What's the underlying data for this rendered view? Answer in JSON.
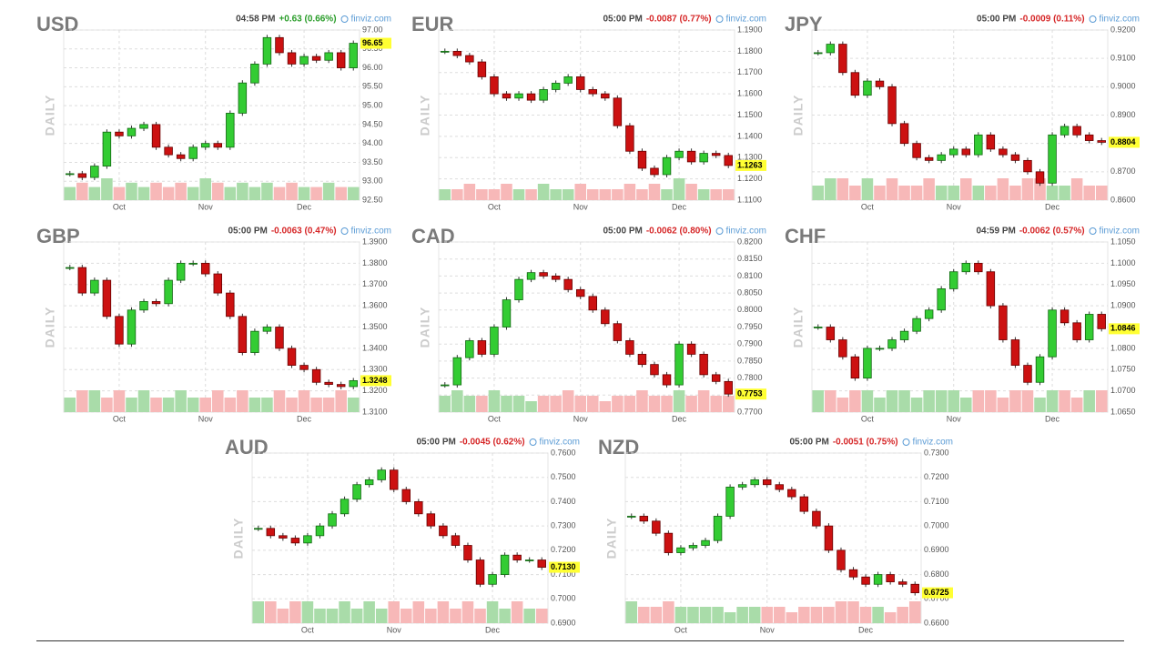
{
  "chart_data": [
    {
      "type": "candlestick",
      "title": "USD",
      "time": "04:58 PM",
      "change": "+0.63 (0.66%)",
      "change_color": "#2a9d2a",
      "source": "finviz.com",
      "ylabel": "DAILY",
      "categories": [
        null,
        null,
        null,
        null,
        "Oct",
        null,
        null,
        null,
        null,
        null,
        null,
        "Nov",
        null,
        null,
        null,
        null,
        null,
        null,
        null,
        "Dec",
        null,
        null,
        null,
        null
      ],
      "values": [
        93.2,
        93.1,
        93.4,
        94.3,
        94.2,
        94.4,
        94.5,
        93.9,
        93.7,
        93.6,
        93.9,
        94.0,
        93.9,
        94.8,
        95.6,
        96.1,
        96.8,
        96.4,
        96.1,
        96.3,
        96.2,
        96.4,
        96.0,
        96.65
      ],
      "volume": [
        3,
        4,
        3,
        5,
        3,
        4,
        3,
        4,
        3,
        4,
        3,
        5,
        4,
        3,
        4,
        3,
        4,
        3,
        4,
        3,
        3,
        4,
        3,
        3
      ],
      "last_label": "96.65",
      "ylim": [
        92.5,
        97
      ],
      "yticks": [
        {
          "value": 92.5,
          "label": "92.50"
        },
        {
          "value": 93,
          "label": "93.00"
        },
        {
          "value": 93.5,
          "label": "93.50"
        },
        {
          "value": 94,
          "label": "94.00"
        },
        {
          "value": 94.5,
          "label": "94.50"
        },
        {
          "value": 95,
          "label": "95.00"
        },
        {
          "value": 95.5,
          "label": "95.50"
        },
        {
          "value": 96,
          "label": "96.00"
        },
        {
          "value": 96.5,
          "label": "96.50"
        },
        {
          "value": 97,
          "label": "97.00"
        }
      ]
    },
    {
      "type": "candlestick",
      "title": "EUR",
      "time": "05:00 PM",
      "change": "-0.0087 (0.77%)",
      "change_color": "#d62728",
      "source": "finviz.com",
      "ylabel": "DAILY",
      "categories": [
        null,
        null,
        null,
        null,
        "Oct",
        null,
        null,
        null,
        null,
        null,
        null,
        "Nov",
        null,
        null,
        null,
        null,
        null,
        null,
        null,
        "Dec",
        null,
        null,
        null,
        null
      ],
      "values": [
        1.18,
        1.178,
        1.175,
        1.168,
        1.16,
        1.158,
        1.16,
        1.157,
        1.162,
        1.165,
        1.168,
        1.162,
        1.16,
        1.158,
        1.145,
        1.133,
        1.125,
        1.122,
        1.13,
        1.133,
        1.128,
        1.132,
        1.131,
        1.1263
      ],
      "volume": [
        2,
        2,
        3,
        2,
        2,
        3,
        2,
        2,
        3,
        2,
        2,
        3,
        2,
        2,
        2,
        3,
        2,
        3,
        2,
        4,
        3,
        2,
        2,
        2
      ],
      "last_label": "1.1263",
      "ylim": [
        1.11,
        1.19
      ],
      "yticks": [
        {
          "value": 1.11,
          "label": "1.1100"
        },
        {
          "value": 1.12,
          "label": "1.1200"
        },
        {
          "value": 1.13,
          "label": "1.1300"
        },
        {
          "value": 1.14,
          "label": "1.1400"
        },
        {
          "value": 1.15,
          "label": "1.1500"
        },
        {
          "value": 1.16,
          "label": "1.1600"
        },
        {
          "value": 1.17,
          "label": "1.1700"
        },
        {
          "value": 1.18,
          "label": "1.1800"
        },
        {
          "value": 1.19,
          "label": "1.1900"
        }
      ]
    },
    {
      "type": "candlestick",
      "title": "JPY",
      "time": "05:00 PM",
      "change": "-0.0009 (0.11%)",
      "change_color": "#d62728",
      "source": "finviz.com",
      "ylabel": "DAILY",
      "categories": [
        null,
        null,
        null,
        null,
        "Oct",
        null,
        null,
        null,
        null,
        null,
        null,
        "Nov",
        null,
        null,
        null,
        null,
        null,
        null,
        null,
        "Dec",
        null,
        null,
        null,
        null
      ],
      "values": [
        0.912,
        0.915,
        0.905,
        0.897,
        0.902,
        0.9,
        0.887,
        0.88,
        0.875,
        0.874,
        0.876,
        0.878,
        0.876,
        0.883,
        0.878,
        0.876,
        0.874,
        0.87,
        0.866,
        0.883,
        0.886,
        0.883,
        0.881,
        0.8804
      ],
      "volume": [
        2,
        3,
        3,
        2,
        3,
        2,
        3,
        2,
        2,
        3,
        2,
        2,
        3,
        2,
        2,
        3,
        2,
        3,
        3,
        2,
        2,
        3,
        2,
        2
      ],
      "last_label": "0.8804",
      "ylim": [
        0.86,
        0.92
      ],
      "yticks": [
        {
          "value": 0.86,
          "label": "0.8600"
        },
        {
          "value": 0.87,
          "label": "0.8700"
        },
        {
          "value": 0.88,
          "label": "0.8800"
        },
        {
          "value": 0.89,
          "label": "0.8900"
        },
        {
          "value": 0.9,
          "label": "0.9000"
        },
        {
          "value": 0.91,
          "label": "0.9100"
        },
        {
          "value": 0.92,
          "label": "0.9200"
        }
      ]
    },
    {
      "type": "candlestick",
      "title": "GBP",
      "time": "05:00 PM",
      "change": "-0.0063 (0.47%)",
      "change_color": "#d62728",
      "source": "finviz.com",
      "ylabel": "DAILY",
      "categories": [
        null,
        null,
        null,
        null,
        "Oct",
        null,
        null,
        null,
        null,
        null,
        null,
        "Nov",
        null,
        null,
        null,
        null,
        null,
        null,
        null,
        "Dec",
        null,
        null,
        null,
        null
      ],
      "values": [
        1.378,
        1.366,
        1.372,
        1.355,
        1.342,
        1.358,
        1.362,
        1.361,
        1.372,
        1.38,
        1.38,
        1.375,
        1.366,
        1.355,
        1.338,
        1.348,
        1.35,
        1.34,
        1.332,
        1.33,
        1.324,
        1.323,
        1.322,
        1.3248
      ],
      "volume": [
        2,
        3,
        3,
        2,
        3,
        2,
        3,
        2,
        2,
        3,
        2,
        2,
        3,
        2,
        3,
        2,
        2,
        3,
        2,
        3,
        2,
        2,
        3,
        2
      ],
      "last_label": "1.3248",
      "ylim": [
        1.31,
        1.39
      ],
      "yticks": [
        {
          "value": 1.31,
          "label": "1.3100"
        },
        {
          "value": 1.32,
          "label": "1.3200"
        },
        {
          "value": 1.33,
          "label": "1.3300"
        },
        {
          "value": 1.34,
          "label": "1.3400"
        },
        {
          "value": 1.35,
          "label": "1.3500"
        },
        {
          "value": 1.36,
          "label": "1.3600"
        },
        {
          "value": 1.37,
          "label": "1.3700"
        },
        {
          "value": 1.38,
          "label": "1.3800"
        },
        {
          "value": 1.39,
          "label": "1.3900"
        }
      ]
    },
    {
      "type": "candlestick",
      "title": "CAD",
      "time": "05:00 PM",
      "change": "-0.0062 (0.80%)",
      "change_color": "#d62728",
      "source": "finviz.com",
      "ylabel": "DAILY",
      "categories": [
        null,
        null,
        null,
        null,
        "Oct",
        null,
        null,
        null,
        null,
        null,
        null,
        "Nov",
        null,
        null,
        null,
        null,
        null,
        null,
        null,
        "Dec",
        null,
        null,
        null,
        null
      ],
      "values": [
        0.778,
        0.786,
        0.791,
        0.787,
        0.795,
        0.803,
        0.809,
        0.811,
        0.81,
        0.809,
        0.806,
        0.804,
        0.8,
        0.796,
        0.791,
        0.787,
        0.784,
        0.781,
        0.778,
        0.79,
        0.787,
        0.781,
        0.779,
        0.7753
      ],
      "volume": [
        3,
        4,
        3,
        3,
        4,
        3,
        3,
        2,
        3,
        3,
        4,
        3,
        3,
        2,
        3,
        3,
        4,
        3,
        3,
        4,
        3,
        4,
        3,
        3
      ],
      "last_label": "0.7753",
      "ylim": [
        0.77,
        0.82
      ],
      "yticks": [
        {
          "value": 0.77,
          "label": "0.7700"
        },
        {
          "value": 0.775,
          "label": "0.7750"
        },
        {
          "value": 0.78,
          "label": "0.7800"
        },
        {
          "value": 0.785,
          "label": "0.7850"
        },
        {
          "value": 0.79,
          "label": "0.7900"
        },
        {
          "value": 0.795,
          "label": "0.7950"
        },
        {
          "value": 0.8,
          "label": "0.8000"
        },
        {
          "value": 0.805,
          "label": "0.8050"
        },
        {
          "value": 0.81,
          "label": "0.8100"
        },
        {
          "value": 0.815,
          "label": "0.8150"
        },
        {
          "value": 0.82,
          "label": "0.8200"
        }
      ]
    },
    {
      "type": "candlestick",
      "title": "CHF",
      "time": "04:59 PM",
      "change": "-0.0062 (0.57%)",
      "change_color": "#d62728",
      "source": "finviz.com",
      "ylabel": "DAILY",
      "categories": [
        null,
        null,
        null,
        null,
        "Oct",
        null,
        null,
        null,
        null,
        null,
        null,
        "Nov",
        null,
        null,
        null,
        null,
        null,
        null,
        null,
        "Dec",
        null,
        null,
        null,
        null
      ],
      "values": [
        1.085,
        1.082,
        1.078,
        1.073,
        1.08,
        1.08,
        1.082,
        1.084,
        1.087,
        1.089,
        1.094,
        1.098,
        1.1,
        1.098,
        1.09,
        1.082,
        1.076,
        1.072,
        1.078,
        1.089,
        1.086,
        1.082,
        1.088,
        1.0846
      ],
      "volume": [
        3,
        3,
        2,
        3,
        3,
        2,
        3,
        3,
        2,
        3,
        3,
        3,
        2,
        3,
        3,
        2,
        3,
        3,
        2,
        3,
        3,
        2,
        3,
        3
      ],
      "last_label": "1.0846",
      "ylim": [
        1.065,
        1.105
      ],
      "yticks": [
        {
          "value": 1.065,
          "label": "1.0650"
        },
        {
          "value": 1.07,
          "label": "1.0700"
        },
        {
          "value": 1.075,
          "label": "1.0750"
        },
        {
          "value": 1.08,
          "label": "1.0800"
        },
        {
          "value": 1.085,
          "label": "1.0850"
        },
        {
          "value": 1.09,
          "label": "1.0900"
        },
        {
          "value": 1.095,
          "label": "1.0950"
        },
        {
          "value": 1.1,
          "label": "1.1000"
        },
        {
          "value": 1.105,
          "label": "1.1050"
        }
      ]
    },
    {
      "type": "candlestick",
      "title": "AUD",
      "time": "05:00 PM",
      "change": "-0.0045 (0.62%)",
      "change_color": "#d62728",
      "source": "finviz.com",
      "ylabel": "DAILY",
      "categories": [
        null,
        null,
        null,
        null,
        "Oct",
        null,
        null,
        null,
        null,
        null,
        null,
        "Nov",
        null,
        null,
        null,
        null,
        null,
        null,
        null,
        "Dec",
        null,
        null,
        null,
        null
      ],
      "values": [
        0.729,
        0.726,
        0.725,
        0.723,
        0.726,
        0.73,
        0.735,
        0.741,
        0.747,
        0.749,
        0.753,
        0.745,
        0.74,
        0.735,
        0.73,
        0.726,
        0.722,
        0.716,
        0.706,
        0.71,
        0.718,
        0.716,
        0.716,
        0.713
      ],
      "volume": [
        3,
        3,
        2,
        3,
        3,
        2,
        2,
        3,
        2,
        3,
        2,
        3,
        2,
        3,
        2,
        3,
        2,
        3,
        2,
        3,
        2,
        3,
        2,
        2
      ],
      "last_label": "0.7130",
      "ylim": [
        0.69,
        0.76
      ],
      "yticks": [
        {
          "value": 0.69,
          "label": "0.6900"
        },
        {
          "value": 0.7,
          "label": "0.7000"
        },
        {
          "value": 0.71,
          "label": "0.7100"
        },
        {
          "value": 0.72,
          "label": "0.7200"
        },
        {
          "value": 0.73,
          "label": "0.7300"
        },
        {
          "value": 0.74,
          "label": "0.7400"
        },
        {
          "value": 0.75,
          "label": "0.7500"
        },
        {
          "value": 0.76,
          "label": "0.7600"
        }
      ]
    },
    {
      "type": "candlestick",
      "title": "NZD",
      "time": "05:00 PM",
      "change": "-0.0051 (0.75%)",
      "change_color": "#d62728",
      "source": "finviz.com",
      "ylabel": "DAILY",
      "categories": [
        null,
        null,
        null,
        null,
        "Oct",
        null,
        null,
        null,
        null,
        null,
        null,
        "Nov",
        null,
        null,
        null,
        null,
        null,
        null,
        null,
        "Dec",
        null,
        null,
        null,
        null
      ],
      "values": [
        0.704,
        0.702,
        0.697,
        0.689,
        0.691,
        0.692,
        0.694,
        0.704,
        0.716,
        0.717,
        0.719,
        0.717,
        0.715,
        0.712,
        0.706,
        0.7,
        0.69,
        0.682,
        0.679,
        0.676,
        0.68,
        0.677,
        0.676,
        0.6725
      ],
      "volume": [
        4,
        3,
        3,
        4,
        3,
        3,
        3,
        3,
        2,
        3,
        3,
        3,
        3,
        2,
        3,
        3,
        3,
        4,
        4,
        3,
        3,
        2,
        3,
        4
      ],
      "last_label": "0.6725",
      "ylim": [
        0.66,
        0.73
      ],
      "yticks": [
        {
          "value": 0.66,
          "label": "0.6600"
        },
        {
          "value": 0.67,
          "label": "0.6700"
        },
        {
          "value": 0.68,
          "label": "0.6800"
        },
        {
          "value": 0.69,
          "label": "0.6900"
        },
        {
          "value": 0.7,
          "label": "0.7000"
        },
        {
          "value": 0.71,
          "label": "0.7100"
        },
        {
          "value": 0.72,
          "label": "0.7200"
        },
        {
          "value": 0.73,
          "label": "0.7300"
        }
      ]
    }
  ]
}
